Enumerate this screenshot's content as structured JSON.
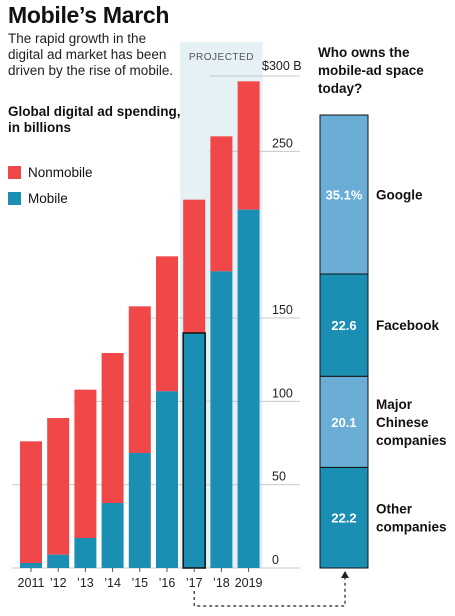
{
  "header": {
    "title": "Mobile’s March",
    "subtitle": "The rapid growth in the digital ad market has been driven by the rise of mobile.",
    "unit_label": "Global digital ad spending, in billions"
  },
  "legend": [
    {
      "label": "Nonmobile",
      "color": "#f04848"
    },
    {
      "label": "Mobile",
      "color": "#1a8fb3"
    }
  ],
  "chart_data": [
    {
      "type": "bar",
      "stacked": true,
      "categories": [
        "2011",
        "’12",
        "’13",
        "’14",
        "’15",
        "’16",
        "’17",
        "’18",
        "2019"
      ],
      "series": [
        {
          "name": "Mobile",
          "color": "#1a8fb3",
          "values": [
            3,
            8,
            18,
            39,
            69,
            106,
            141,
            178,
            215
          ]
        },
        {
          "name": "Nonmobile",
          "color": "#f04848",
          "values": [
            73,
            82,
            89,
            90,
            88,
            81,
            80,
            81,
            77
          ]
        }
      ],
      "ylim": [
        0,
        300
      ],
      "yticks": [
        0,
        50,
        100,
        150,
        250
      ],
      "top_tick_label": "$300 B",
      "projected_label": "PROJECTED",
      "grid": true
    },
    {
      "type": "bar",
      "stacked": true,
      "title": "Who owns the mobile-ad space today?",
      "categories": [
        "Google",
        "Facebook",
        "Major Chinese companies",
        "Other companies"
      ],
      "values": [
        35.1,
        22.6,
        20.1,
        22.2
      ],
      "value_labels": [
        "35.1%",
        "22.6",
        "20.1",
        "22.2"
      ],
      "colors": [
        "#6aaed6",
        "#1a8fb3",
        "#6aaed6",
        "#1a8fb3"
      ]
    }
  ]
}
